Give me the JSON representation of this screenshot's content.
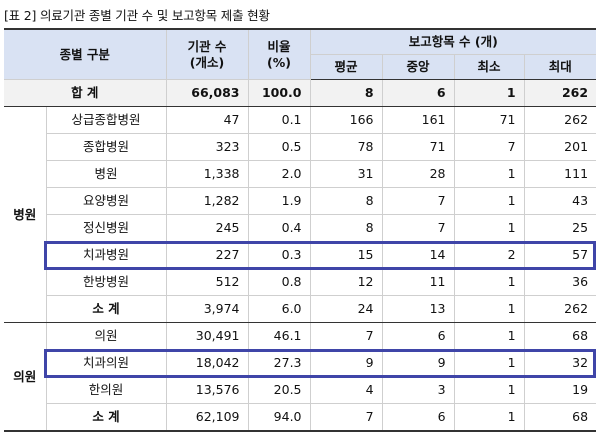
{
  "caption": "[표 2] 의료기관 종별 기관 수 및 보고항목 제출 현황",
  "header": {
    "category": "종별 구분",
    "count_line1": "기관 수",
    "count_line2": "(개소)",
    "ratio_line1": "비율",
    "ratio_line2": "(%)",
    "report_group": "보고항목 수 (개)",
    "avg": "평균",
    "median": "중앙",
    "min": "최소",
    "max": "최대"
  },
  "total": {
    "label": "합  계",
    "count": "66,083",
    "ratio": "100.0",
    "avg": "8",
    "median": "6",
    "min": "1",
    "max": "262"
  },
  "hospital": {
    "group": "병원",
    "rows": [
      {
        "name": "상급종합병원",
        "count": "47",
        "ratio": "0.1",
        "avg": "166",
        "median": "161",
        "min": "71",
        "max": "262"
      },
      {
        "name": "종합병원",
        "count": "323",
        "ratio": "0.5",
        "avg": "78",
        "median": "71",
        "min": "7",
        "max": "201"
      },
      {
        "name": "병원",
        "count": "1,338",
        "ratio": "2.0",
        "avg": "31",
        "median": "28",
        "min": "1",
        "max": "111"
      },
      {
        "name": "요양병원",
        "count": "1,282",
        "ratio": "1.9",
        "avg": "8",
        "median": "7",
        "min": "1",
        "max": "43"
      },
      {
        "name": "정신병원",
        "count": "245",
        "ratio": "0.4",
        "avg": "8",
        "median": "7",
        "min": "1",
        "max": "25"
      },
      {
        "name": "치과병원",
        "count": "227",
        "ratio": "0.3",
        "avg": "15",
        "median": "14",
        "min": "2",
        "max": "57"
      },
      {
        "name": "한방병원",
        "count": "512",
        "ratio": "0.8",
        "avg": "12",
        "median": "11",
        "min": "1",
        "max": "36"
      }
    ],
    "subtotal": {
      "label": "소  계",
      "count": "3,974",
      "ratio": "6.0",
      "avg": "24",
      "median": "13",
      "min": "1",
      "max": "262"
    }
  },
  "clinic": {
    "group": "의원",
    "rows": [
      {
        "name": "의원",
        "count": "30,491",
        "ratio": "46.1",
        "avg": "7",
        "median": "6",
        "min": "1",
        "max": "68"
      },
      {
        "name": "치과의원",
        "count": "18,042",
        "ratio": "27.3",
        "avg": "9",
        "median": "9",
        "min": "1",
        "max": "32"
      },
      {
        "name": "한의원",
        "count": "13,576",
        "ratio": "20.5",
        "avg": "4",
        "median": "3",
        "min": "1",
        "max": "19"
      }
    ],
    "subtotal": {
      "label": "소  계",
      "count": "62,109",
      "ratio": "94.0",
      "avg": "7",
      "median": "6",
      "min": "1",
      "max": "68"
    }
  },
  "highlight_color": "#3f45a8"
}
